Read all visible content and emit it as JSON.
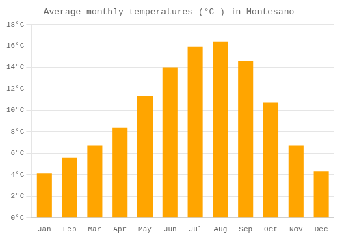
{
  "chart_data": {
    "type": "bar",
    "title": "Average monthly temperatures (°C ) in Montesano",
    "categories": [
      "Jan",
      "Feb",
      "Mar",
      "Apr",
      "May",
      "Jun",
      "Jul",
      "Aug",
      "Sep",
      "Oct",
      "Nov",
      "Dec"
    ],
    "values": [
      4.1,
      5.6,
      6.7,
      8.4,
      11.3,
      14.0,
      15.9,
      16.4,
      14.6,
      10.7,
      6.7,
      4.3
    ],
    "color": "#FFA500",
    "ylim": [
      0,
      18
    ],
    "yticks": [
      {
        "value": 0,
        "label": "0°C"
      },
      {
        "value": 2,
        "label": "2°C"
      },
      {
        "value": 4,
        "label": "4°C"
      },
      {
        "value": 6,
        "label": "6°C"
      },
      {
        "value": 8,
        "label": "8°C"
      },
      {
        "value": 10,
        "label": "10°C"
      },
      {
        "value": 12,
        "label": "12°C"
      },
      {
        "value": 14,
        "label": "14°C"
      },
      {
        "value": 16,
        "label": "16°C"
      },
      {
        "value": 18,
        "label": "18°C"
      }
    ],
    "grid": true
  }
}
